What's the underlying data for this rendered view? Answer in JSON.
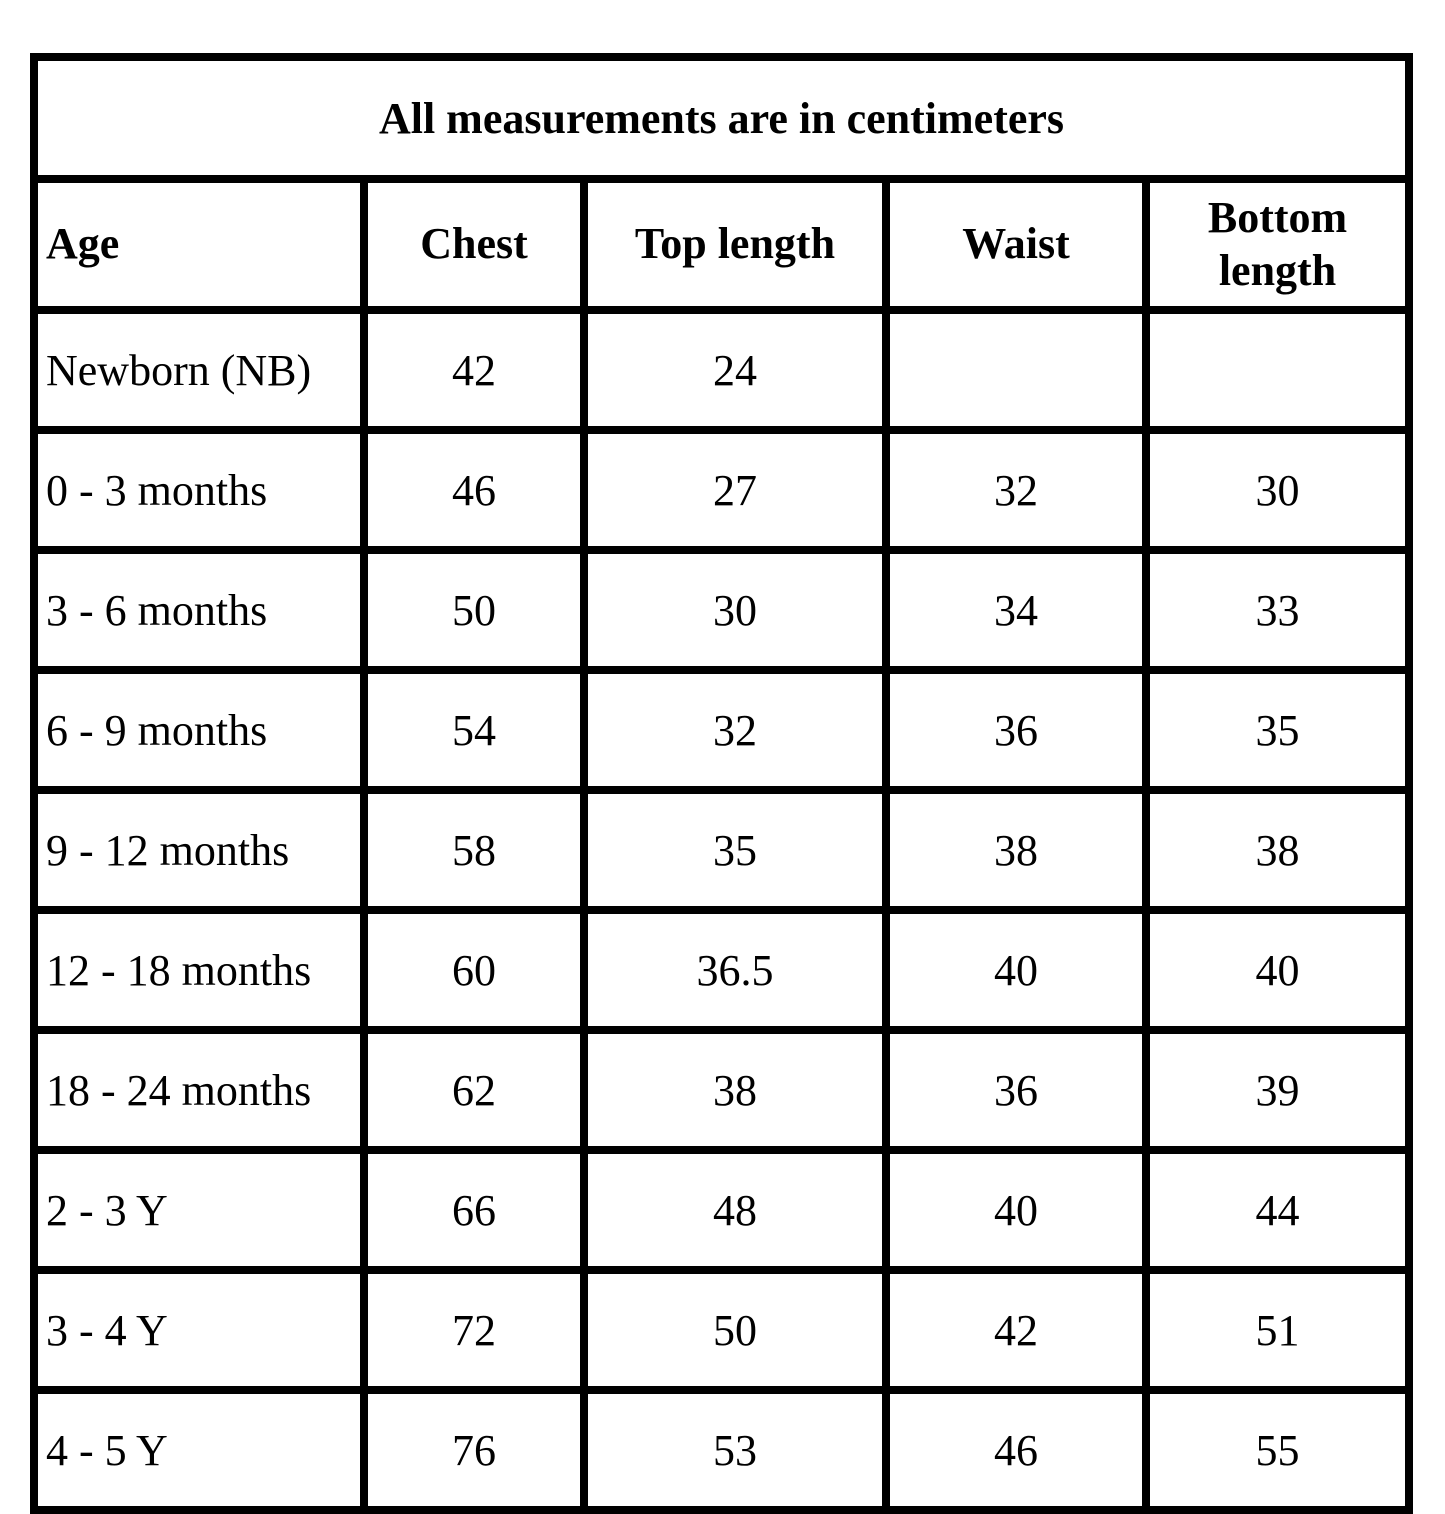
{
  "table": {
    "title": "All measurements are in centimeters",
    "columns": [
      "Age",
      "Chest",
      "Top length",
      "Waist",
      "Bottom length"
    ],
    "rows": [
      {
        "age": "Newborn (NB)",
        "chest": "42",
        "top_length": "24",
        "waist": "",
        "bottom_length": ""
      },
      {
        "age": "0 - 3 months",
        "chest": "46",
        "top_length": "27",
        "waist": "32",
        "bottom_length": "30"
      },
      {
        "age": "3 - 6 months",
        "chest": "50",
        "top_length": "30",
        "waist": "34",
        "bottom_length": "33"
      },
      {
        "age": "6 - 9 months",
        "chest": "54",
        "top_length": "32",
        "waist": "36",
        "bottom_length": "35"
      },
      {
        "age": "9 - 12 months",
        "chest": "58",
        "top_length": "35",
        "waist": "38",
        "bottom_length": "38"
      },
      {
        "age": "12 - 18 months",
        "chest": "60",
        "top_length": "36.5",
        "waist": "40",
        "bottom_length": "40"
      },
      {
        "age": "18 - 24 months",
        "chest": "62",
        "top_length": "38",
        "waist": "36",
        "bottom_length": "39"
      },
      {
        "age": "2 - 3 Y",
        "chest": "66",
        "top_length": "48",
        "waist": "40",
        "bottom_length": "44"
      },
      {
        "age": "3 - 4 Y",
        "chest": "72",
        "top_length": "50",
        "waist": "42",
        "bottom_length": "51"
      },
      {
        "age": "4 - 5 Y",
        "chest": "76",
        "top_length": "53",
        "waist": "46",
        "bottom_length": "55"
      }
    ],
    "colors": {
      "border": "#000000",
      "text": "#000000",
      "background": "#ffffff"
    }
  }
}
